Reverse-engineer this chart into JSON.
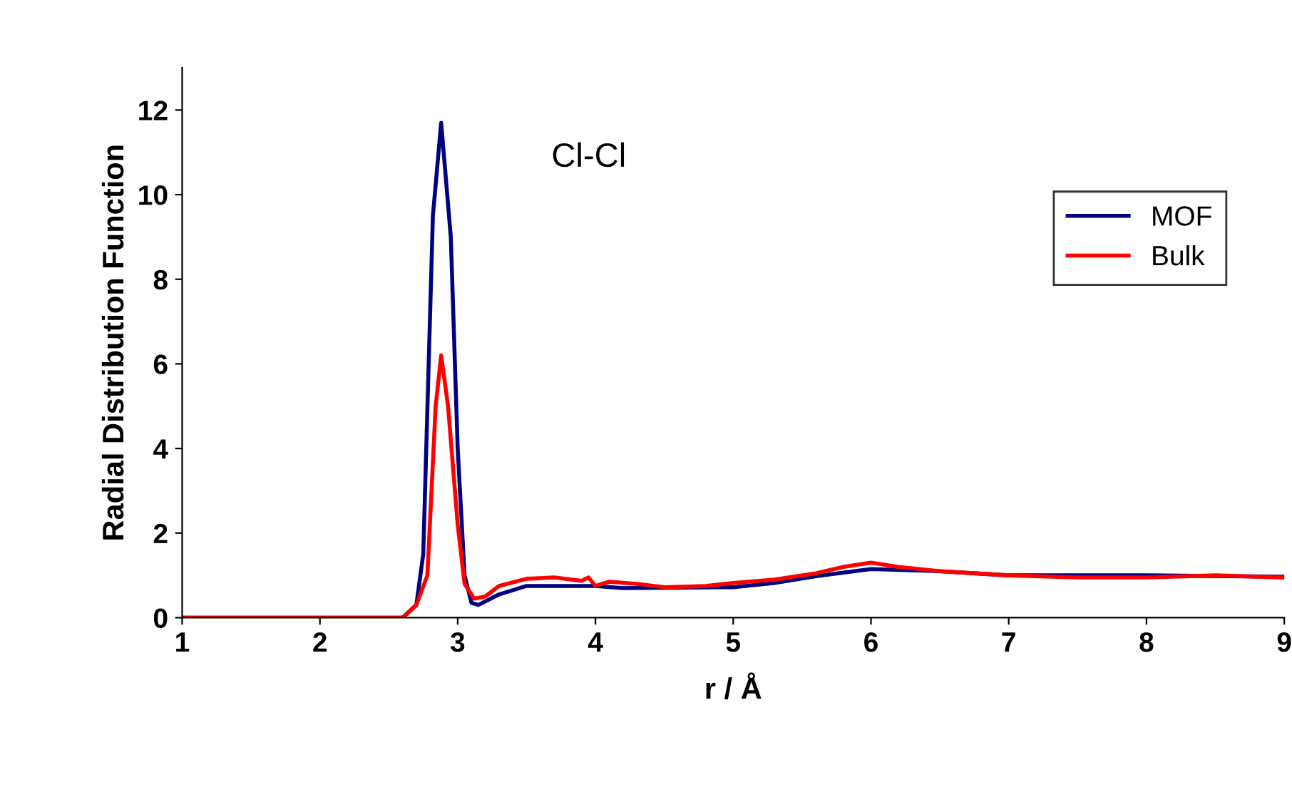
{
  "chart_data": {
    "type": "line",
    "xlabel": "r / Å",
    "ylabel": "Radial Distribution Function",
    "annotations": [
      "Cl-Cl"
    ],
    "xlim": [
      1,
      9
    ],
    "ylim": [
      0,
      13
    ],
    "xticks": [
      1,
      2,
      3,
      4,
      5,
      6,
      7,
      8,
      9
    ],
    "yticks": [
      0,
      2,
      4,
      6,
      8,
      10,
      12
    ],
    "legend": "top right",
    "grid": false,
    "marker": "none",
    "line_style": "solid",
    "series": [
      {
        "name": "MOF",
        "color": "#000080",
        "x": [
          1,
          2.6,
          2.7,
          2.75,
          2.82,
          2.88,
          2.95,
          3.0,
          3.05,
          3.1,
          3.15,
          3.3,
          3.5,
          4.0,
          4.2,
          5.0,
          5.3,
          5.6,
          6.0,
          6.5,
          7.0,
          8.0,
          9.0
        ],
        "values": [
          0,
          0,
          0.3,
          1.5,
          9.5,
          11.7,
          9,
          4,
          1,
          0.35,
          0.3,
          0.55,
          0.75,
          0.75,
          0.7,
          0.72,
          0.82,
          0.98,
          1.15,
          1.1,
          1.0,
          1.0,
          0.97
        ]
      },
      {
        "name": "Bulk",
        "color": "#ff0000",
        "x": [
          1,
          2.6,
          2.7,
          2.78,
          2.84,
          2.88,
          2.93,
          3.0,
          3.05,
          3.12,
          3.2,
          3.3,
          3.5,
          3.7,
          3.9,
          3.95,
          4.0,
          4.1,
          4.3,
          4.5,
          4.8,
          5.0,
          5.3,
          5.6,
          5.8,
          5.9,
          6.0,
          6.2,
          6.5,
          7.0,
          7.5,
          8.0,
          8.5,
          9.0
        ],
        "values": [
          0,
          0,
          0.3,
          1.0,
          5,
          6.2,
          5,
          2.2,
          0.8,
          0.45,
          0.5,
          0.75,
          0.92,
          0.95,
          0.87,
          0.95,
          0.75,
          0.85,
          0.8,
          0.72,
          0.75,
          0.82,
          0.9,
          1.05,
          1.2,
          1.25,
          1.3,
          1.2,
          1.1,
          1.0,
          0.95,
          0.95,
          1.0,
          0.95
        ]
      }
    ]
  }
}
